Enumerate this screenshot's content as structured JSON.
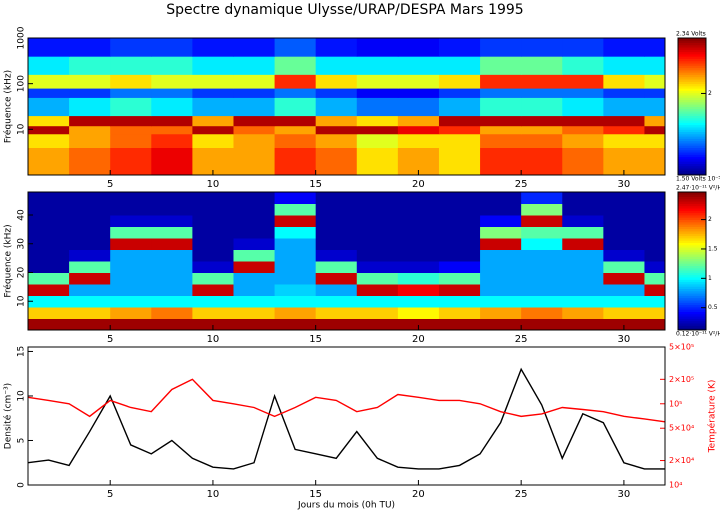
{
  "title": "Spectre dynamique Ulysse/URAP/DESPA  Mars 1995",
  "chart_data": [
    {
      "type": "heatmap",
      "ylabel": "Fréquence (kHz)",
      "log_y": true,
      "xlim": [
        1,
        32
      ],
      "xticks": [
        5,
        10,
        15,
        20,
        25,
        30
      ],
      "ylim": [
        1,
        1000
      ],
      "yticks": [
        1000,
        100,
        10
      ],
      "x_edges": [
        1,
        3,
        5,
        7,
        9,
        11,
        13,
        15,
        17,
        19,
        21,
        23,
        25,
        27,
        29,
        31,
        32
      ],
      "y_edges": [
        1,
        4,
        8,
        12,
        20,
        50,
        80,
        160,
        400,
        1000
      ],
      "clim": [
        1.5,
        2.34
      ],
      "cticks": [
        2
      ],
      "clabel_top": "2.34 Volts",
      "clabel_bottom": "1.50 Volts 10⁻⁵",
      "z": [
        [
          2.1,
          2.15,
          2.2,
          2.25,
          2.1,
          2.1,
          2.2,
          2.15,
          2.05,
          2.1,
          2.05,
          2.2,
          2.2,
          2.15,
          2.1,
          2.1
        ],
        [
          2.05,
          2.1,
          2.15,
          2.2,
          2.05,
          2.1,
          2.15,
          2.1,
          2.0,
          2.05,
          2.05,
          2.15,
          2.15,
          2.1,
          2.05,
          2.05
        ],
        [
          2.3,
          2.1,
          2.15,
          2.15,
          2.3,
          2.15,
          2.1,
          2.3,
          2.3,
          2.25,
          2.2,
          2.1,
          2.1,
          2.15,
          2.2,
          2.3
        ],
        [
          2.05,
          2.3,
          2.3,
          2.3,
          2.1,
          2.3,
          2.3,
          2.1,
          2.05,
          2.1,
          2.3,
          2.3,
          2.3,
          2.3,
          2.3,
          2.1
        ],
        [
          1.75,
          1.8,
          1.85,
          1.8,
          1.75,
          1.75,
          1.85,
          1.75,
          1.7,
          1.7,
          1.75,
          1.85,
          1.85,
          1.8,
          1.75,
          1.75
        ],
        [
          1.65,
          1.65,
          1.7,
          1.7,
          1.65,
          1.65,
          1.7,
          1.65,
          1.6,
          1.6,
          1.65,
          1.7,
          1.7,
          1.7,
          1.65,
          1.65
        ],
        [
          2.0,
          2.0,
          2.05,
          2.0,
          2.0,
          2.0,
          2.2,
          2.05,
          2.0,
          2.0,
          2.05,
          2.2,
          2.2,
          2.2,
          2.05,
          2.0
        ],
        [
          1.8,
          1.85,
          1.85,
          1.85,
          1.8,
          1.8,
          1.9,
          1.8,
          1.8,
          1.8,
          1.8,
          1.9,
          1.9,
          1.85,
          1.8,
          1.8
        ],
        [
          1.62,
          1.62,
          1.65,
          1.65,
          1.62,
          1.62,
          1.68,
          1.62,
          1.6,
          1.6,
          1.62,
          1.65,
          1.65,
          1.65,
          1.62,
          1.62
        ]
      ]
    },
    {
      "type": "heatmap",
      "ylabel": "Fréquence (kHz)",
      "log_y": false,
      "xlim": [
        1,
        32
      ],
      "xticks": [
        5,
        10,
        15,
        20,
        25,
        30
      ],
      "ylim": [
        0,
        48
      ],
      "yticks": [
        10,
        20,
        30,
        40
      ],
      "x_edges": [
        1,
        3,
        5,
        7,
        9,
        11,
        13,
        15,
        17,
        19,
        21,
        23,
        25,
        27,
        29,
        31,
        32
      ],
      "y_edges": [
        0,
        4,
        8,
        12,
        16,
        20,
        24,
        28,
        32,
        36,
        40,
        44,
        48
      ],
      "clim": [
        0.12,
        2.47
      ],
      "cticks": [
        0.5,
        1,
        1.5,
        2
      ],
      "clabel_top": "2.47·10⁻¹¹ V²/Hz",
      "clabel_bottom": "0.12·10⁻¹¹ V²/Hz",
      "z": [
        [
          2.4,
          2.4,
          2.4,
          2.4,
          2.4,
          2.4,
          2.4,
          2.4,
          2.4,
          2.4,
          2.4,
          2.4,
          2.4,
          2.4,
          2.4,
          2.4
        ],
        [
          1.7,
          1.7,
          1.8,
          1.9,
          1.7,
          1.7,
          1.8,
          1.7,
          1.7,
          1.6,
          1.7,
          1.8,
          1.9,
          1.8,
          1.7,
          1.7
        ],
        [
          1.0,
          1.0,
          1.0,
          1.0,
          1.0,
          1.0,
          1.0,
          1.0,
          1.0,
          1.0,
          1.0,
          1.0,
          1.0,
          1.0,
          1.0,
          1.0
        ],
        [
          2.3,
          0.8,
          0.8,
          0.8,
          2.3,
          0.8,
          0.9,
          0.8,
          2.3,
          2.2,
          2.3,
          0.8,
          0.8,
          0.8,
          0.8,
          2.3
        ],
        [
          1.2,
          2.3,
          0.8,
          0.8,
          1.2,
          0.8,
          0.8,
          2.3,
          1.2,
          1.1,
          1.2,
          0.8,
          0.8,
          0.8,
          2.3,
          1.2
        ],
        [
          0.2,
          1.2,
          0.8,
          0.8,
          0.3,
          2.3,
          0.8,
          1.2,
          0.3,
          0.3,
          0.4,
          0.8,
          0.8,
          0.8,
          1.2,
          0.3
        ],
        [
          0.2,
          0.3,
          0.8,
          0.8,
          0.2,
          1.2,
          0.8,
          0.3,
          0.2,
          0.2,
          0.2,
          0.8,
          0.8,
          0.8,
          0.3,
          0.2
        ],
        [
          0.2,
          0.2,
          2.3,
          2.3,
          0.2,
          0.3,
          0.8,
          0.2,
          0.2,
          0.2,
          0.2,
          2.3,
          1.0,
          2.3,
          0.2,
          0.2
        ],
        [
          0.2,
          0.2,
          1.2,
          1.2,
          0.2,
          0.2,
          1.0,
          0.2,
          0.2,
          0.2,
          0.2,
          1.3,
          1.2,
          1.2,
          0.2,
          0.2
        ],
        [
          0.2,
          0.2,
          0.3,
          0.3,
          0.2,
          0.2,
          2.3,
          0.2,
          0.2,
          0.2,
          0.2,
          0.4,
          2.3,
          0.3,
          0.2,
          0.2
        ],
        [
          0.2,
          0.2,
          0.2,
          0.2,
          0.2,
          0.2,
          1.2,
          0.2,
          0.2,
          0.2,
          0.2,
          0.2,
          1.3,
          0.2,
          0.2,
          0.2
        ],
        [
          0.2,
          0.2,
          0.2,
          0.2,
          0.2,
          0.2,
          0.4,
          0.2,
          0.2,
          0.2,
          0.2,
          0.2,
          0.5,
          0.2,
          0.2,
          0.2
        ]
      ]
    },
    {
      "type": "line",
      "ylabel": "Densité (cm⁻³)",
      "y2label": "Température (K)",
      "xlabel": "Jours du mois (0h TU)",
      "xlim": [
        1,
        32
      ],
      "xticks": [
        5,
        10,
        15,
        20,
        25,
        30
      ],
      "ylim": [
        0,
        15.5
      ],
      "yticks": [
        0,
        5,
        10,
        15
      ],
      "y2lim": [
        10000,
        500000
      ],
      "y2_log": true,
      "y2ticks": [
        {
          "value": 10000,
          "label": "10⁴"
        },
        {
          "value": 20000,
          "label": "2×10⁴"
        },
        {
          "value": 50000,
          "label": "5×10⁴"
        },
        {
          "value": 100000,
          "label": "10⁵"
        },
        {
          "value": 200000,
          "label": "2×10⁵"
        },
        {
          "value": 500000,
          "label": "5×10⁵"
        }
      ],
      "x": [
        1,
        2,
        3,
        4,
        5,
        6,
        7,
        8,
        9,
        10,
        11,
        12,
        13,
        14,
        15,
        16,
        17,
        18,
        19,
        20,
        21,
        22,
        23,
        24,
        25,
        26,
        27,
        28,
        29,
        30,
        31,
        32
      ],
      "series": [
        {
          "name": "Densité",
          "color": "#000000",
          "values": [
            2.5,
            2.8,
            2.2,
            6,
            10,
            4.5,
            3.5,
            5,
            3,
            2,
            1.8,
            2.5,
            10,
            4,
            3.5,
            3,
            6,
            3,
            2,
            1.8,
            1.8,
            2.2,
            3.5,
            7,
            13,
            9,
            3,
            8,
            7,
            2.5,
            1.8,
            1.8
          ]
        },
        {
          "name": "Température",
          "color": "#ff0000",
          "axis": "y2",
          "values": [
            120000,
            110000,
            100000,
            70000,
            110000,
            90000,
            80000,
            150000,
            200000,
            110000,
            100000,
            90000,
            70000,
            90000,
            120000,
            110000,
            80000,
            90000,
            130000,
            120000,
            110000,
            110000,
            100000,
            80000,
            70000,
            75000,
            90000,
            85000,
            80000,
            70000,
            65000,
            60000
          ]
        }
      ]
    }
  ]
}
